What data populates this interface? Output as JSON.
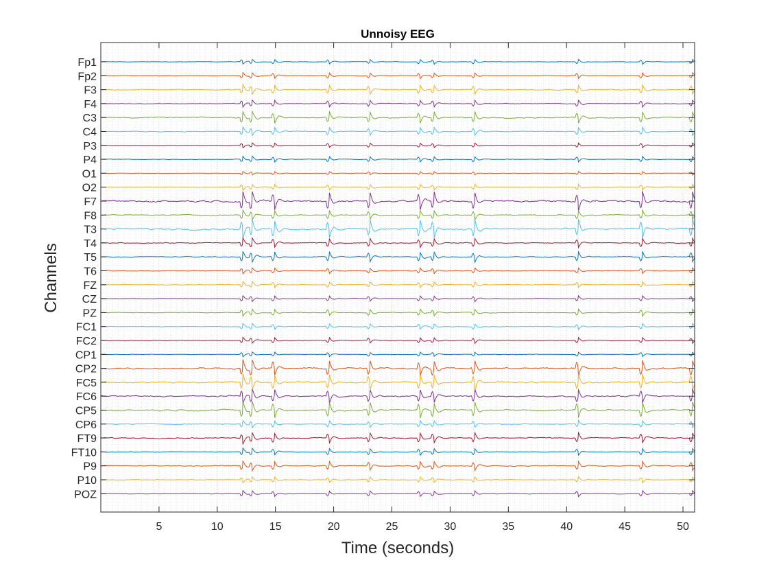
{
  "chart_data": {
    "type": "line",
    "title": "Unnoisy EEG",
    "xlabel": "Time (seconds)",
    "ylabel": "Channels",
    "xlim": [
      0,
      51
    ],
    "xticks": [
      5,
      10,
      15,
      20,
      25,
      30,
      35,
      40,
      45,
      50
    ],
    "grid": "minor dotted",
    "event_times": [
      12.2,
      13.0,
      14.9,
      19.6,
      23.1,
      27.4,
      28.6,
      32.1,
      41.0,
      46.5,
      50.8
    ],
    "colors": [
      "#0072BD",
      "#D95319",
      "#EDB120",
      "#7E2F8E",
      "#77AC30",
      "#4DBEEE",
      "#A2142F"
    ],
    "channels": [
      "Fp1",
      "Fp2",
      "F3",
      "F4",
      "C3",
      "C4",
      "P3",
      "P4",
      "O1",
      "O2",
      "F7",
      "F8",
      "T3",
      "T4",
      "T5",
      "T6",
      "FZ",
      "CZ",
      "PZ",
      "FC1",
      "FC2",
      "CP1",
      "CP2",
      "FC5",
      "FC6",
      "CP5",
      "CP6",
      "FT9",
      "FT10",
      "P9",
      "P10",
      "POZ"
    ],
    "channel_gain": [
      0.4,
      0.5,
      0.8,
      0.6,
      1.0,
      0.7,
      0.4,
      0.5,
      0.3,
      0.5,
      1.6,
      0.8,
      1.6,
      0.8,
      0.9,
      0.5,
      0.5,
      0.5,
      0.6,
      0.5,
      0.5,
      0.4,
      1.4,
      1.4,
      1.2,
      1.4,
      0.6,
      0.9,
      0.6,
      0.8,
      0.5,
      0.5
    ]
  }
}
